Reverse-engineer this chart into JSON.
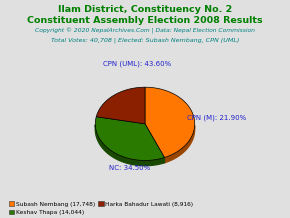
{
  "title1": "Ilam District, Constituency No. 2",
  "title2": "Constituent Assembly Election 2008 Results",
  "copyright": "Copyright © 2020 NepalArchives.Com | Data: Nepal Election Commission",
  "total_votes_text": "Total Votes: 40,708 | Elected: Subash Nembang, CPN (UML)",
  "slices": [
    {
      "label": "CPN (UML)",
      "pct": 43.6,
      "color": "#FF7700",
      "votes": 17748,
      "candidate": "Subash Nembang"
    },
    {
      "label": "NC",
      "pct": 34.5,
      "color": "#2A7A00",
      "votes": 14044,
      "candidate": "Keshav Thapa"
    },
    {
      "label": "CPN (M)",
      "pct": 21.9,
      "color": "#8B2000",
      "votes": 8916,
      "candidate": "Harka Bahadur Lawati"
    }
  ],
  "legend_items": [
    {
      "label": "Subash Nembang (17,748)",
      "color": "#FF7700"
    },
    {
      "label": "Keshav Thapa (14,044)",
      "color": "#2A7A00"
    },
    {
      "label": "Harka Bahadur Lawati (8,916)",
      "color": "#8B2000"
    }
  ],
  "title_color": "#008000",
  "subtitle_color": "#008000",
  "copyright_color": "#008080",
  "total_votes_color": "#008080",
  "label_color": "#2222CC",
  "background_color": "#E0E0E0"
}
